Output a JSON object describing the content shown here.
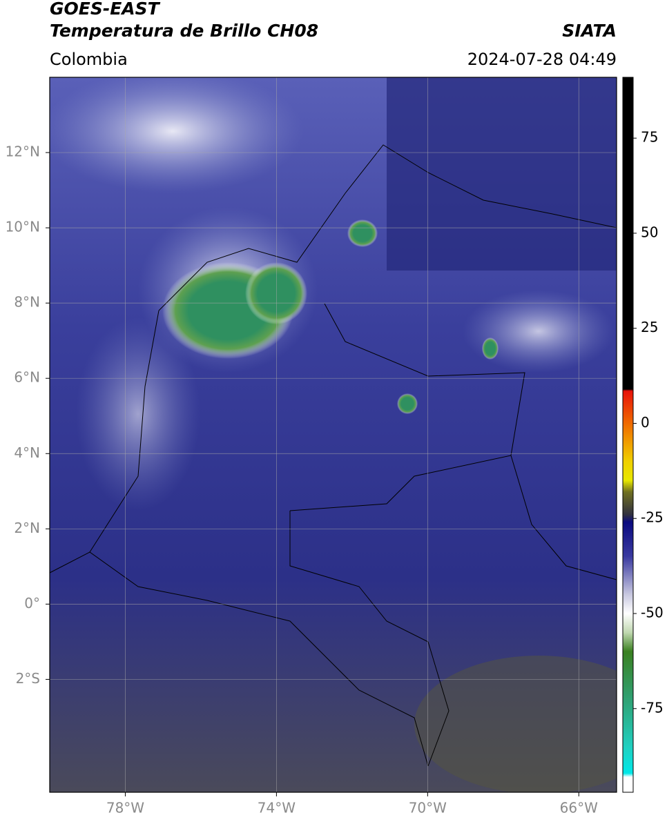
{
  "header": {
    "satellite": "GOES-EAST",
    "product": "Temperatura de Brillo CH08",
    "source": "SIATA",
    "region": "Colombia",
    "datetime": "2024-07-28 04:49"
  },
  "map": {
    "xlim": [
      -80,
      -65
    ],
    "ylim": [
      -5,
      14
    ],
    "xticks": [
      {
        "value": -78,
        "label": "78°W"
      },
      {
        "value": -74,
        "label": "74°W"
      },
      {
        "value": -70,
        "label": "70°W"
      },
      {
        "value": -66,
        "label": "66°W"
      }
    ],
    "yticks": [
      {
        "value": 12,
        "label": "12°N"
      },
      {
        "value": 10,
        "label": "10°N"
      },
      {
        "value": 8,
        "label": "8°N"
      },
      {
        "value": 6,
        "label": "6°N"
      },
      {
        "value": 4,
        "label": "4°N"
      },
      {
        "value": 2,
        "label": "2°N"
      },
      {
        "value": 0,
        "label": "0°"
      },
      {
        "value": -2,
        "label": "2°S"
      }
    ],
    "grid": true
  },
  "colorbar": {
    "clim": [
      -97,
      91
    ],
    "ticks": [
      75,
      50,
      25,
      0,
      -25,
      -50,
      -75
    ],
    "stops": [
      {
        "value": 91,
        "color": "#000000"
      },
      {
        "value": 9,
        "color": "#000000"
      },
      {
        "value": 8.5,
        "color": "#e8120a"
      },
      {
        "value": 0,
        "color": "#f06a00"
      },
      {
        "value": -10,
        "color": "#f0d000"
      },
      {
        "value": -15,
        "color": "#e8e800"
      },
      {
        "value": -18,
        "color": "#707020"
      },
      {
        "value": -24,
        "color": "#303040"
      },
      {
        "value": -26,
        "color": "#0a0a80"
      },
      {
        "value": -35,
        "color": "#3a3aa0"
      },
      {
        "value": -45,
        "color": "#c8c8e0"
      },
      {
        "value": -50,
        "color": "#ffffff"
      },
      {
        "value": -55,
        "color": "#c0d8b0"
      },
      {
        "value": -60,
        "color": "#3a8020"
      },
      {
        "value": -72,
        "color": "#30a070"
      },
      {
        "value": -85,
        "color": "#20d0c0"
      },
      {
        "value": -92,
        "color": "#00e8e8"
      },
      {
        "value": -93,
        "color": "#ffffff"
      },
      {
        "value": -97,
        "color": "#ffffff"
      }
    ]
  }
}
